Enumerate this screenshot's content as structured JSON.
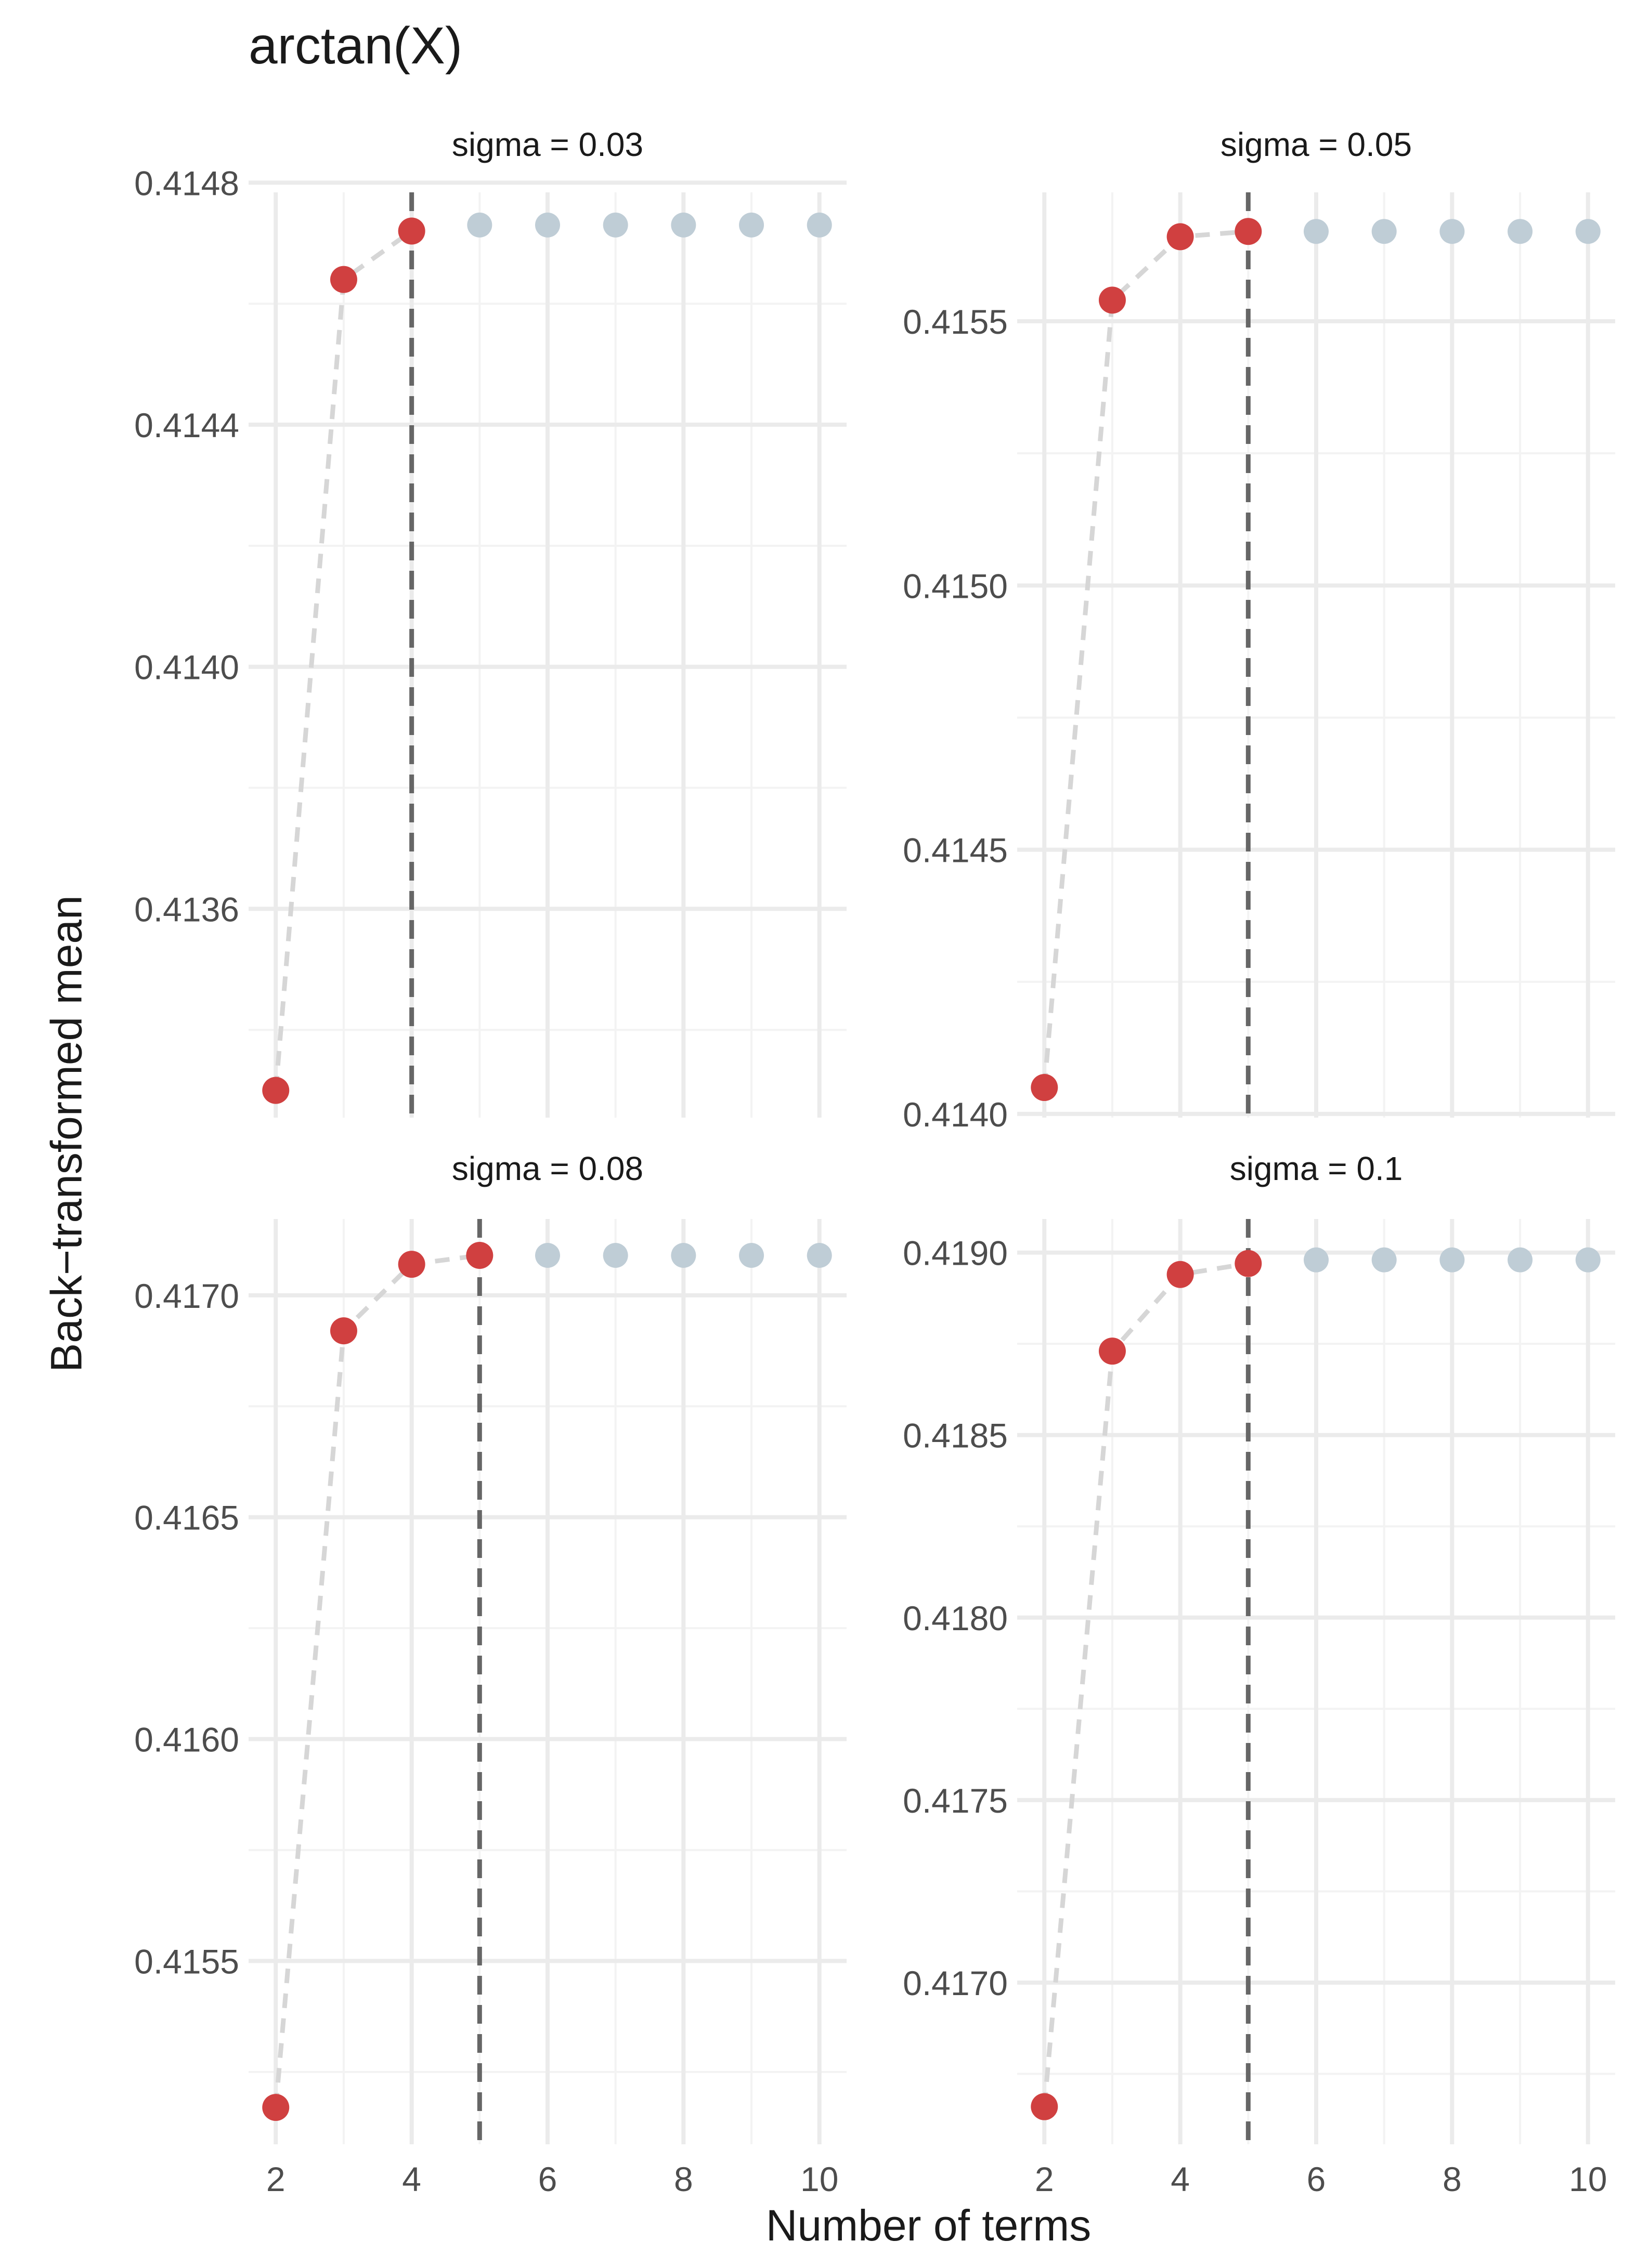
{
  "figure": {
    "title": "arctan(X)",
    "xlabel": "Number of terms",
    "ylabel": "Back−transformed mean"
  },
  "colors": {
    "selected_point": "#d04040",
    "unselected_point": "#bfcdd6",
    "path_line": "#d6d6d6",
    "cutoff_line": "#666666",
    "grid_major": "#ebebeb",
    "grid_minor": "#f3f3f3",
    "axis_text": "#4d4d4d",
    "strip_text": "#1a1a1a"
  },
  "chart_data": [
    {
      "type": "scatter",
      "panel": "sigma = 0.03",
      "x": [
        2,
        3,
        4,
        5,
        6,
        7,
        8,
        9,
        10
      ],
      "y": [
        0.4133,
        0.41464,
        0.41472,
        0.41473,
        0.41473,
        0.41473,
        0.41473,
        0.41473,
        0.41473
      ],
      "selected": [
        true,
        true,
        true,
        false,
        false,
        false,
        false,
        false,
        false
      ],
      "cutoff_x": 4,
      "xlim": [
        1.6,
        10.4
      ],
      "xticks": [
        2,
        4,
        6,
        8,
        10
      ],
      "xtick_labels": [
        "2",
        "4",
        "6",
        "8",
        "10"
      ],
      "ylim": [
        0.413255,
        0.414784
      ],
      "yticks": [
        0.4136,
        0.414,
        0.4144,
        0.4148
      ],
      "ytick_labels": [
        "0.4136",
        "0.4140",
        "0.4144",
        "0.4148"
      ],
      "grid": true
    },
    {
      "type": "scatter",
      "panel": "sigma = 0.05",
      "x": [
        2,
        3,
        4,
        5,
        6,
        7,
        8,
        9,
        10
      ],
      "y": [
        0.41405,
        0.41554,
        0.41566,
        0.41567,
        0.41567,
        0.41567,
        0.41567,
        0.41567,
        0.41567
      ],
      "selected": [
        true,
        true,
        true,
        true,
        false,
        false,
        false,
        false,
        false
      ],
      "cutoff_x": 5,
      "xlim": [
        1.6,
        10.4
      ],
      "xticks": [
        2,
        4,
        6,
        8,
        10
      ],
      "xtick_labels": [
        "2",
        "4",
        "6",
        "8",
        "10"
      ],
      "ylim": [
        0.413993,
        0.415744
      ],
      "yticks": [
        0.414,
        0.4145,
        0.415,
        0.4155
      ],
      "ytick_labels": [
        "0.4140",
        "0.4145",
        "0.4150",
        "0.4155"
      ],
      "grid": true
    },
    {
      "type": "scatter",
      "panel": "sigma = 0.08",
      "x": [
        2,
        3,
        4,
        5,
        6,
        7,
        8,
        9,
        10
      ],
      "y": [
        0.41517,
        0.41692,
        0.41707,
        0.41709,
        0.41709,
        0.41709,
        0.41709,
        0.41709,
        0.41709
      ],
      "selected": [
        true,
        true,
        true,
        true,
        false,
        false,
        false,
        false,
        false
      ],
      "cutoff_x": 5,
      "xlim": [
        1.6,
        10.4
      ],
      "xticks": [
        2,
        4,
        6,
        8,
        10
      ],
      "xtick_labels": [
        "2",
        "4",
        "6",
        "8",
        "10"
      ],
      "ylim": [
        0.415087,
        0.417172
      ],
      "yticks": [
        0.4155,
        0.416,
        0.4165,
        0.417
      ],
      "ytick_labels": [
        "0.4155",
        "0.4160",
        "0.4165",
        "0.4170"
      ],
      "grid": true
    },
    {
      "type": "scatter",
      "panel": "sigma = 0.1",
      "x": [
        2,
        3,
        4,
        5,
        6,
        7,
        8,
        9,
        10
      ],
      "y": [
        0.41666,
        0.41873,
        0.41894,
        0.41897,
        0.41898,
        0.41898,
        0.41898,
        0.41898,
        0.41898
      ],
      "selected": [
        true,
        true,
        true,
        true,
        false,
        false,
        false,
        false,
        false
      ],
      "cutoff_x": 5,
      "xlim": [
        1.6,
        10.4
      ],
      "xticks": [
        2,
        4,
        6,
        8,
        10
      ],
      "xtick_labels": [
        "2",
        "4",
        "6",
        "8",
        "10"
      ],
      "ylim": [
        0.416557,
        0.419092
      ],
      "yticks": [
        0.417,
        0.4175,
        0.418,
        0.4185,
        0.419
      ],
      "ytick_labels": [
        "0.4170",
        "0.4175",
        "0.4180",
        "0.4185",
        "0.4190"
      ],
      "grid": true
    }
  ]
}
